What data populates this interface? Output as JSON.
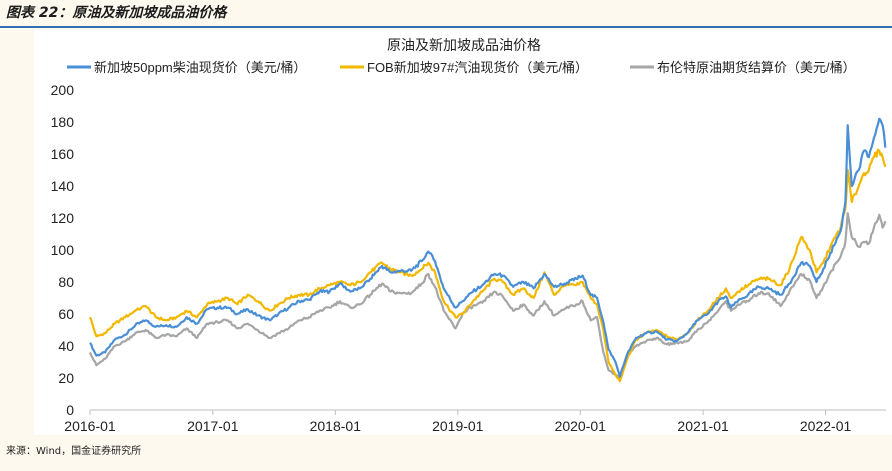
{
  "figure": {
    "label": "图表 22：原油及新加坡成品油价格",
    "source": "来源：Wind，国金证券研究所"
  },
  "chart_data": {
    "type": "line",
    "title": "原油及新加坡成品油价格",
    "xlabel": "",
    "ylabel": "",
    "ylim": [
      0,
      200
    ],
    "yticks": [
      0,
      20,
      40,
      60,
      80,
      100,
      120,
      140,
      160,
      180,
      200
    ],
    "xlim": [
      "2016-01-01",
      "2022-06-30"
    ],
    "xticks": [
      "2016-01",
      "2017-01",
      "2018-01",
      "2019-01",
      "2020-01",
      "2021-01",
      "2022-01"
    ],
    "grid": false,
    "legend": "top",
    "series": [
      {
        "name": "新加坡50ppm柴油现货价（美元/桶）",
        "color": "#4a8fd6",
        "points": [
          [
            "2016-01-01",
            42
          ],
          [
            "2016-01-20",
            34
          ],
          [
            "2016-02-15",
            36
          ],
          [
            "2016-03-15",
            44
          ],
          [
            "2016-04-15",
            47
          ],
          [
            "2016-05-15",
            53
          ],
          [
            "2016-06-15",
            56
          ],
          [
            "2016-07-15",
            52
          ],
          [
            "2016-08-15",
            53
          ],
          [
            "2016-09-15",
            52
          ],
          [
            "2016-10-15",
            58
          ],
          [
            "2016-11-15",
            54
          ],
          [
            "2016-12-15",
            63
          ],
          [
            "2017-01-15",
            64
          ],
          [
            "2017-02-15",
            64
          ],
          [
            "2017-03-15",
            60
          ],
          [
            "2017-04-15",
            63
          ],
          [
            "2017-05-15",
            59
          ],
          [
            "2017-06-20",
            56
          ],
          [
            "2017-07-15",
            60
          ],
          [
            "2017-08-15",
            64
          ],
          [
            "2017-09-15",
            68
          ],
          [
            "2017-10-15",
            69
          ],
          [
            "2017-11-15",
            74
          ],
          [
            "2017-12-15",
            74
          ],
          [
            "2018-01-15",
            79
          ],
          [
            "2018-02-15",
            74
          ],
          [
            "2018-03-15",
            76
          ],
          [
            "2018-04-15",
            82
          ],
          [
            "2018-05-20",
            90
          ],
          [
            "2018-06-15",
            86
          ],
          [
            "2018-07-15",
            87
          ],
          [
            "2018-08-15",
            87
          ],
          [
            "2018-09-15",
            93
          ],
          [
            "2018-10-05",
            99
          ],
          [
            "2018-10-25",
            93
          ],
          [
            "2018-11-20",
            76
          ],
          [
            "2018-12-25",
            64
          ],
          [
            "2019-01-15",
            68
          ],
          [
            "2019-02-15",
            74
          ],
          [
            "2019-03-15",
            78
          ],
          [
            "2019-04-20",
            85
          ],
          [
            "2019-05-15",
            84
          ],
          [
            "2019-06-15",
            77
          ],
          [
            "2019-07-15",
            80
          ],
          [
            "2019-08-15",
            76
          ],
          [
            "2019-09-16",
            85
          ],
          [
            "2019-10-15",
            77
          ],
          [
            "2019-11-15",
            79
          ],
          [
            "2019-12-20",
            82
          ],
          [
            "2020-01-08",
            84
          ],
          [
            "2020-02-01",
            72
          ],
          [
            "2020-02-20",
            70
          ],
          [
            "2020-03-10",
            55
          ],
          [
            "2020-03-25",
            38
          ],
          [
            "2020-04-15",
            30
          ],
          [
            "2020-04-28",
            21
          ],
          [
            "2020-05-20",
            35
          ],
          [
            "2020-06-15",
            45
          ],
          [
            "2020-07-15",
            48
          ],
          [
            "2020-08-15",
            49
          ],
          [
            "2020-09-15",
            44
          ],
          [
            "2020-10-15",
            43
          ],
          [
            "2020-11-15",
            48
          ],
          [
            "2020-12-15",
            56
          ],
          [
            "2021-01-15",
            60
          ],
          [
            "2021-02-15",
            68
          ],
          [
            "2021-03-10",
            71
          ],
          [
            "2021-03-25",
            64
          ],
          [
            "2021-04-15",
            68
          ],
          [
            "2021-05-15",
            72
          ],
          [
            "2021-06-15",
            77
          ],
          [
            "2021-07-15",
            76
          ],
          [
            "2021-08-20",
            72
          ],
          [
            "2021-09-15",
            79
          ],
          [
            "2021-10-20",
            92
          ],
          [
            "2021-11-15",
            90
          ],
          [
            "2021-12-05",
            80
          ],
          [
            "2021-12-25",
            88
          ],
          [
            "2022-01-15",
            98
          ],
          [
            "2022-02-15",
            112
          ],
          [
            "2022-03-01",
            130
          ],
          [
            "2022-03-08",
            178
          ],
          [
            "2022-03-20",
            140
          ],
          [
            "2022-04-10",
            150
          ],
          [
            "2022-04-25",
            162
          ],
          [
            "2022-05-10",
            158
          ],
          [
            "2022-05-25",
            170
          ],
          [
            "2022-06-10",
            182
          ],
          [
            "2022-06-20",
            178
          ],
          [
            "2022-06-28",
            164
          ]
        ]
      },
      {
        "name": "FOB新加坡97#汽油现货价（美元/桶）",
        "color": "#f2b800",
        "points": [
          [
            "2016-01-01",
            58
          ],
          [
            "2016-01-20",
            46
          ],
          [
            "2016-02-15",
            48
          ],
          [
            "2016-03-15",
            54
          ],
          [
            "2016-04-15",
            58
          ],
          [
            "2016-05-15",
            62
          ],
          [
            "2016-06-15",
            65
          ],
          [
            "2016-07-15",
            58
          ],
          [
            "2016-08-15",
            56
          ],
          [
            "2016-09-15",
            58
          ],
          [
            "2016-10-15",
            62
          ],
          [
            "2016-11-15",
            58
          ],
          [
            "2016-12-15",
            66
          ],
          [
            "2017-01-15",
            68
          ],
          [
            "2017-02-15",
            70
          ],
          [
            "2017-03-15",
            66
          ],
          [
            "2017-04-15",
            72
          ],
          [
            "2017-05-15",
            68
          ],
          [
            "2017-06-20",
            62
          ],
          [
            "2017-07-15",
            66
          ],
          [
            "2017-08-15",
            70
          ],
          [
            "2017-09-15",
            72
          ],
          [
            "2017-10-15",
            72
          ],
          [
            "2017-11-15",
            76
          ],
          [
            "2017-12-15",
            78
          ],
          [
            "2018-01-15",
            80
          ],
          [
            "2018-02-15",
            78
          ],
          [
            "2018-03-15",
            80
          ],
          [
            "2018-04-15",
            86
          ],
          [
            "2018-05-20",
            92
          ],
          [
            "2018-06-15",
            88
          ],
          [
            "2018-07-15",
            86
          ],
          [
            "2018-08-15",
            84
          ],
          [
            "2018-09-15",
            88
          ],
          [
            "2018-10-05",
            92
          ],
          [
            "2018-10-25",
            86
          ],
          [
            "2018-11-20",
            68
          ],
          [
            "2018-12-25",
            58
          ],
          [
            "2019-01-15",
            60
          ],
          [
            "2019-02-15",
            68
          ],
          [
            "2019-03-15",
            74
          ],
          [
            "2019-04-20",
            82
          ],
          [
            "2019-05-15",
            80
          ],
          [
            "2019-06-15",
            72
          ],
          [
            "2019-07-15",
            76
          ],
          [
            "2019-08-15",
            70
          ],
          [
            "2019-09-16",
            86
          ],
          [
            "2019-10-15",
            72
          ],
          [
            "2019-11-15",
            78
          ],
          [
            "2019-12-20",
            78
          ],
          [
            "2020-01-08",
            80
          ],
          [
            "2020-02-01",
            70
          ],
          [
            "2020-02-20",
            66
          ],
          [
            "2020-03-10",
            50
          ],
          [
            "2020-03-25",
            30
          ],
          [
            "2020-04-15",
            22
          ],
          [
            "2020-04-28",
            18
          ],
          [
            "2020-05-20",
            32
          ],
          [
            "2020-06-15",
            44
          ],
          [
            "2020-07-15",
            48
          ],
          [
            "2020-08-15",
            50
          ],
          [
            "2020-09-15",
            46
          ],
          [
            "2020-10-15",
            44
          ],
          [
            "2020-11-15",
            48
          ],
          [
            "2020-12-15",
            56
          ],
          [
            "2021-01-15",
            62
          ],
          [
            "2021-02-15",
            70
          ],
          [
            "2021-03-10",
            76
          ],
          [
            "2021-03-25",
            70
          ],
          [
            "2021-04-15",
            74
          ],
          [
            "2021-05-15",
            78
          ],
          [
            "2021-06-15",
            82
          ],
          [
            "2021-07-15",
            82
          ],
          [
            "2021-08-20",
            78
          ],
          [
            "2021-09-15",
            88
          ],
          [
            "2021-10-20",
            108
          ],
          [
            "2021-11-15",
            100
          ],
          [
            "2021-12-05",
            86
          ],
          [
            "2021-12-25",
            92
          ],
          [
            "2022-01-15",
            102
          ],
          [
            "2022-02-15",
            114
          ],
          [
            "2022-03-01",
            126
          ],
          [
            "2022-03-08",
            150
          ],
          [
            "2022-03-20",
            130
          ],
          [
            "2022-04-10",
            140
          ],
          [
            "2022-04-25",
            148
          ],
          [
            "2022-05-10",
            150
          ],
          [
            "2022-05-25",
            158
          ],
          [
            "2022-06-10",
            162
          ],
          [
            "2022-06-20",
            158
          ],
          [
            "2022-06-28",
            152
          ]
        ]
      },
      {
        "name": "布伦特原油期货结算价（美元/桶）",
        "color": "#a6a6a6",
        "points": [
          [
            "2016-01-01",
            36
          ],
          [
            "2016-01-20",
            28
          ],
          [
            "2016-02-15",
            32
          ],
          [
            "2016-03-15",
            40
          ],
          [
            "2016-04-15",
            43
          ],
          [
            "2016-05-15",
            48
          ],
          [
            "2016-06-15",
            50
          ],
          [
            "2016-07-15",
            45
          ],
          [
            "2016-08-15",
            47
          ],
          [
            "2016-09-15",
            46
          ],
          [
            "2016-10-15",
            51
          ],
          [
            "2016-11-15",
            45
          ],
          [
            "2016-12-15",
            54
          ],
          [
            "2017-01-15",
            55
          ],
          [
            "2017-02-15",
            56
          ],
          [
            "2017-03-15",
            51
          ],
          [
            "2017-04-15",
            54
          ],
          [
            "2017-05-15",
            50
          ],
          [
            "2017-06-20",
            45
          ],
          [
            "2017-07-15",
            48
          ],
          [
            "2017-08-15",
            51
          ],
          [
            "2017-09-15",
            56
          ],
          [
            "2017-10-15",
            58
          ],
          [
            "2017-11-15",
            62
          ],
          [
            "2017-12-15",
            64
          ],
          [
            "2018-01-15",
            68
          ],
          [
            "2018-02-15",
            64
          ],
          [
            "2018-03-15",
            66
          ],
          [
            "2018-04-15",
            72
          ],
          [
            "2018-05-20",
            79
          ],
          [
            "2018-06-15",
            74
          ],
          [
            "2018-07-15",
            73
          ],
          [
            "2018-08-15",
            73
          ],
          [
            "2018-09-15",
            79
          ],
          [
            "2018-10-05",
            85
          ],
          [
            "2018-10-25",
            77
          ],
          [
            "2018-11-20",
            62
          ],
          [
            "2018-12-25",
            51
          ],
          [
            "2019-01-15",
            60
          ],
          [
            "2019-02-15",
            65
          ],
          [
            "2019-03-15",
            67
          ],
          [
            "2019-04-20",
            74
          ],
          [
            "2019-05-15",
            71
          ],
          [
            "2019-06-15",
            62
          ],
          [
            "2019-07-15",
            66
          ],
          [
            "2019-08-15",
            59
          ],
          [
            "2019-09-16",
            68
          ],
          [
            "2019-10-15",
            59
          ],
          [
            "2019-11-15",
            63
          ],
          [
            "2019-12-20",
            66
          ],
          [
            "2020-01-08",
            68
          ],
          [
            "2020-02-01",
            56
          ],
          [
            "2020-02-20",
            58
          ],
          [
            "2020-03-10",
            36
          ],
          [
            "2020-03-25",
            25
          ],
          [
            "2020-04-15",
            22
          ],
          [
            "2020-04-28",
            20
          ],
          [
            "2020-05-20",
            35
          ],
          [
            "2020-06-15",
            40
          ],
          [
            "2020-07-15",
            43
          ],
          [
            "2020-08-15",
            45
          ],
          [
            "2020-09-15",
            41
          ],
          [
            "2020-10-15",
            42
          ],
          [
            "2020-11-15",
            43
          ],
          [
            "2020-12-15",
            50
          ],
          [
            "2021-01-15",
            55
          ],
          [
            "2021-02-15",
            62
          ],
          [
            "2021-03-10",
            68
          ],
          [
            "2021-03-25",
            62
          ],
          [
            "2021-04-15",
            66
          ],
          [
            "2021-05-15",
            68
          ],
          [
            "2021-06-15",
            73
          ],
          [
            "2021-07-15",
            73
          ],
          [
            "2021-08-20",
            65
          ],
          [
            "2021-09-15",
            74
          ],
          [
            "2021-10-20",
            85
          ],
          [
            "2021-11-15",
            81
          ],
          [
            "2021-12-05",
            70
          ],
          [
            "2021-12-25",
            77
          ],
          [
            "2022-01-15",
            86
          ],
          [
            "2022-02-15",
            96
          ],
          [
            "2022-03-01",
            105
          ],
          [
            "2022-03-08",
            123
          ],
          [
            "2022-03-20",
            108
          ],
          [
            "2022-04-10",
            102
          ],
          [
            "2022-04-25",
            105
          ],
          [
            "2022-05-10",
            104
          ],
          [
            "2022-05-25",
            114
          ],
          [
            "2022-06-10",
            122
          ],
          [
            "2022-06-20",
            114
          ],
          [
            "2022-06-28",
            118
          ]
        ]
      }
    ]
  }
}
